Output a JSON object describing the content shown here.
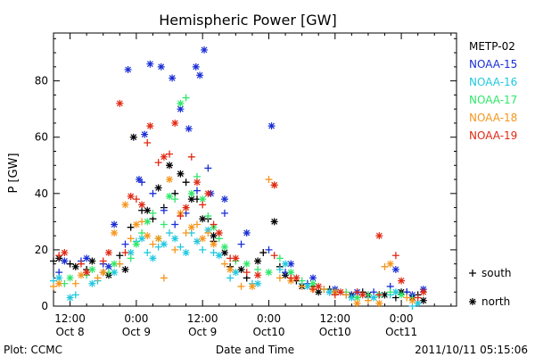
{
  "chart_data": {
    "type": "scatter",
    "title": "Hemispheric Power [GW]",
    "ylabel": "P [GW]",
    "xlabel": "Date and Time",
    "xlim_hours": [
      -15,
      58
    ],
    "ylim": [
      0,
      97
    ],
    "yticks": [
      0,
      20,
      40,
      60,
      80
    ],
    "xticks": [
      {
        "hour": -12,
        "time": "12:00",
        "date": "Oct 8"
      },
      {
        "hour": 0,
        "time": "0:00",
        "date": "Oct 9"
      },
      {
        "hour": 12,
        "time": "12:00",
        "date": "Oct 9"
      },
      {
        "hour": 24,
        "time": "0:00",
        "date": "Oct10"
      },
      {
        "hour": 36,
        "time": "12:00",
        "date": "Oct10"
      },
      {
        "hour": 48,
        "time": "0:00",
        "date": "Oct11"
      }
    ],
    "grid": false,
    "legend_position": "right",
    "marker_legend": [
      {
        "marker": "+",
        "label": "south"
      },
      {
        "marker": "*",
        "label": "north"
      }
    ],
    "footer_left": "Plot: CCMC",
    "footer_right": "2011/10/11 05:15:06",
    "series": [
      {
        "name": "METP-02",
        "color": "#000000",
        "south": [
          [
            -15,
            16
          ],
          [
            -12,
            15
          ],
          [
            -9,
            13
          ],
          [
            -6,
            12
          ],
          [
            -3,
            18
          ],
          [
            -1,
            28
          ],
          [
            1,
            34
          ],
          [
            3,
            31
          ],
          [
            5,
            35
          ],
          [
            7,
            40
          ],
          [
            9,
            44
          ],
          [
            11,
            38
          ],
          [
            13,
            31
          ],
          [
            14,
            23
          ],
          [
            17,
            14
          ],
          [
            20,
            10
          ],
          [
            23,
            19
          ],
          [
            26,
            14
          ],
          [
            29,
            9
          ],
          [
            32,
            7
          ],
          [
            35,
            6
          ],
          [
            38,
            4
          ],
          [
            41,
            5
          ],
          [
            44,
            4
          ],
          [
            47,
            3
          ],
          [
            49,
            5
          ],
          [
            51,
            4
          ]
        ],
        "north": [
          [
            -14,
            17
          ],
          [
            -11,
            14
          ],
          [
            -8,
            16
          ],
          [
            -5,
            11
          ],
          [
            -2,
            13
          ],
          [
            -0.5,
            60
          ],
          [
            2,
            34
          ],
          [
            4,
            42
          ],
          [
            6,
            50
          ],
          [
            8,
            47
          ],
          [
            10,
            38
          ],
          [
            12,
            31
          ],
          [
            14,
            25
          ],
          [
            16,
            19
          ],
          [
            19,
            13
          ],
          [
            22,
            16
          ],
          [
            25,
            30
          ],
          [
            27,
            11
          ],
          [
            30,
            7
          ],
          [
            33,
            5
          ],
          [
            36,
            5
          ],
          [
            39,
            4
          ],
          [
            42,
            4
          ],
          [
            45,
            4
          ],
          [
            48,
            5
          ],
          [
            50,
            3
          ],
          [
            52,
            2
          ]
        ]
      },
      {
        "name": "NOAA-15",
        "color": "#1a2fd6",
        "south": [
          [
            -14,
            12
          ],
          [
            -10,
            16
          ],
          [
            -6,
            15
          ],
          [
            -2,
            22
          ],
          [
            1,
            44
          ],
          [
            3,
            40
          ],
          [
            5,
            34
          ],
          [
            7,
            29
          ],
          [
            9,
            33
          ],
          [
            11,
            41
          ],
          [
            13,
            49
          ],
          [
            16,
            33
          ],
          [
            19,
            22
          ],
          [
            24,
            20
          ],
          [
            27,
            12
          ],
          [
            31,
            8
          ],
          [
            35,
            5
          ],
          [
            39,
            4
          ],
          [
            43,
            5
          ],
          [
            46,
            7
          ],
          [
            49,
            5
          ]
        ],
        "north": [
          [
            -13,
            16
          ],
          [
            -9,
            17
          ],
          [
            -5,
            14
          ],
          [
            -4,
            29
          ],
          [
            -1.5,
            84
          ],
          [
            0.5,
            45
          ],
          [
            1.5,
            61
          ],
          [
            2.5,
            86
          ],
          [
            4.5,
            85
          ],
          [
            6.5,
            81
          ],
          [
            8,
            70
          ],
          [
            9.5,
            63
          ],
          [
            10.8,
            85
          ],
          [
            11.5,
            82
          ],
          [
            12.3,
            91
          ],
          [
            13.5,
            40
          ],
          [
            16,
            38
          ],
          [
            20,
            26
          ],
          [
            24.5,
            64
          ],
          [
            28,
            15
          ],
          [
            32,
            10
          ],
          [
            36,
            6
          ],
          [
            40,
            5
          ],
          [
            44,
            4
          ],
          [
            47,
            13
          ],
          [
            50,
            4
          ],
          [
            52,
            6
          ]
        ]
      },
      {
        "name": "NOAA-16",
        "color": "#22c8e0",
        "south": [
          [
            -15,
            9
          ],
          [
            -11,
            4
          ],
          [
            -7,
            9
          ],
          [
            -3,
            15
          ],
          [
            0,
            23
          ],
          [
            2,
            19
          ],
          [
            4,
            21
          ],
          [
            6,
            26
          ],
          [
            8,
            21
          ],
          [
            10,
            26
          ],
          [
            12,
            20
          ],
          [
            14,
            19
          ],
          [
            17,
            10
          ],
          [
            21,
            8
          ],
          [
            26,
            13
          ],
          [
            30,
            8
          ],
          [
            34,
            6
          ],
          [
            38,
            4
          ],
          [
            42,
            3
          ],
          [
            46,
            4
          ],
          [
            50,
            0
          ]
        ],
        "north": [
          [
            -14,
            10
          ],
          [
            -12,
            3
          ],
          [
            -8,
            8
          ],
          [
            -4,
            12
          ],
          [
            -1,
            19
          ],
          [
            1,
            24
          ],
          [
            3,
            17
          ],
          [
            5,
            22
          ],
          [
            7,
            24
          ],
          [
            9,
            19
          ],
          [
            11,
            23
          ],
          [
            13,
            27
          ],
          [
            15,
            18
          ],
          [
            18,
            12
          ],
          [
            22,
            8
          ],
          [
            27,
            15
          ],
          [
            31,
            7
          ],
          [
            35,
            5
          ],
          [
            39,
            3
          ],
          [
            43,
            3
          ],
          [
            47,
            5
          ],
          [
            51,
            1
          ]
        ]
      },
      {
        "name": "NOAA-17",
        "color": "#2ee86a",
        "south": [
          [
            -13,
            8
          ],
          [
            -9,
            11
          ],
          [
            -5,
            12
          ],
          [
            -1,
            17
          ],
          [
            1,
            26
          ],
          [
            3,
            33
          ],
          [
            5,
            29
          ],
          [
            7,
            38
          ],
          [
            9,
            74
          ],
          [
            11,
            46
          ],
          [
            13,
            32
          ],
          [
            15,
            24
          ],
          [
            18,
            16
          ],
          [
            22,
            13
          ],
          [
            26,
            17
          ],
          [
            30,
            9
          ],
          [
            34,
            6
          ],
          [
            38,
            5
          ],
          [
            42,
            4
          ],
          [
            46,
            5
          ],
          [
            50,
            3
          ]
        ],
        "north": [
          [
            -12,
            10
          ],
          [
            -8,
            13
          ],
          [
            -4,
            15
          ],
          [
            0,
            22
          ],
          [
            2,
            30
          ],
          [
            4,
            24
          ],
          [
            6,
            39
          ],
          [
            8,
            72
          ],
          [
            10,
            40
          ],
          [
            12,
            38
          ],
          [
            14,
            28
          ],
          [
            16,
            21
          ],
          [
            20,
            15
          ],
          [
            24,
            12
          ],
          [
            28,
            12
          ],
          [
            32,
            8
          ],
          [
            36,
            5
          ],
          [
            40,
            3
          ],
          [
            44,
            4
          ],
          [
            48,
            4
          ]
        ]
      },
      {
        "name": "NOAA-18",
        "color": "#f5961e",
        "south": [
          [
            -15,
            7
          ],
          [
            -11,
            8
          ],
          [
            -7,
            10
          ],
          [
            -3,
            15
          ],
          [
            -1,
            24
          ],
          [
            1,
            30
          ],
          [
            3,
            22
          ],
          [
            5,
            10
          ],
          [
            7,
            20
          ],
          [
            9,
            26
          ],
          [
            11,
            29
          ],
          [
            13,
            26
          ],
          [
            16,
            15
          ],
          [
            19,
            7
          ],
          [
            24,
            45
          ],
          [
            26,
            10
          ],
          [
            30,
            7
          ],
          [
            34,
            6
          ],
          [
            38,
            4
          ],
          [
            42,
            2
          ],
          [
            45,
            14
          ],
          [
            49,
            3
          ]
        ],
        "north": [
          [
            -14,
            8
          ],
          [
            -10,
            11
          ],
          [
            -6,
            12
          ],
          [
            -4,
            26
          ],
          [
            -2,
            36
          ],
          [
            0,
            29
          ],
          [
            2,
            25
          ],
          [
            4,
            24
          ],
          [
            6,
            45
          ],
          [
            8,
            33
          ],
          [
            10,
            28
          ],
          [
            12,
            24
          ],
          [
            14,
            22
          ],
          [
            17,
            13
          ],
          [
            21,
            7
          ],
          [
            25,
            43
          ],
          [
            28,
            9
          ],
          [
            32,
            6
          ],
          [
            36,
            5
          ],
          [
            40,
            1
          ],
          [
            44,
            1
          ],
          [
            46,
            15
          ],
          [
            50,
            2
          ]
        ]
      },
      {
        "name": "NOAA-19",
        "color": "#e02a14",
        "south": [
          [
            -14,
            18
          ],
          [
            -10,
            15
          ],
          [
            -6,
            16
          ],
          [
            -2,
            19
          ],
          [
            0,
            38
          ],
          [
            2,
            58
          ],
          [
            4,
            51
          ],
          [
            6,
            54
          ],
          [
            8,
            32
          ],
          [
            10,
            53
          ],
          [
            12,
            36
          ],
          [
            14,
            29
          ],
          [
            17,
            17
          ],
          [
            20,
            12
          ],
          [
            25,
            18
          ],
          [
            28,
            10
          ],
          [
            32,
            6
          ],
          [
            36,
            4
          ],
          [
            40,
            5
          ],
          [
            44,
            4
          ],
          [
            47,
            18
          ],
          [
            51,
            3
          ]
        ],
        "north": [
          [
            -13,
            19
          ],
          [
            -9,
            12
          ],
          [
            -5,
            19
          ],
          [
            -3,
            72
          ],
          [
            -1,
            39
          ],
          [
            1,
            36
          ],
          [
            2.5,
            64
          ],
          [
            5,
            53
          ],
          [
            7,
            65
          ],
          [
            9,
            35
          ],
          [
            11,
            44
          ],
          [
            13,
            40
          ],
          [
            15,
            26
          ],
          [
            18,
            17
          ],
          [
            22,
            11
          ],
          [
            25,
            43
          ],
          [
            29,
            10
          ],
          [
            33,
            7
          ],
          [
            37,
            5
          ],
          [
            41,
            4
          ],
          [
            44,
            25
          ],
          [
            48,
            9
          ],
          [
            52,
            5
          ]
        ]
      }
    ]
  }
}
